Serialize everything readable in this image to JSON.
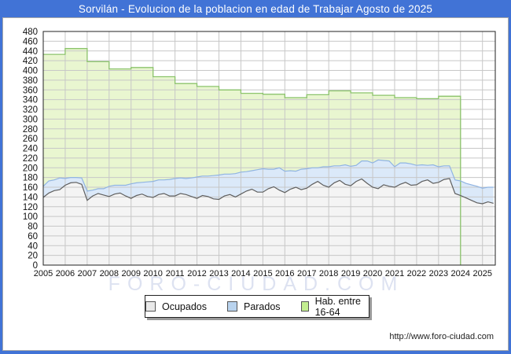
{
  "window": {
    "title": "Sorvilán - Evolucion de la poblacion en edad de Trabajar Agosto de 2025",
    "watermark": "FORO-CIUDAD.COM",
    "footer_url": "http://www.foro-ciudad.com"
  },
  "colors": {
    "frame_blue": "#4173d6",
    "grid": "#c7c7c7",
    "plot_border": "#222222",
    "hab_fill": "#e9f6d0",
    "hab_line": "#8cc46c",
    "parados_fill": "#dbe9f9",
    "parados_line": "#90b4e2",
    "ocupados_fill": "#f4f4f4",
    "ocupados_line": "#5f5f5f"
  },
  "legend": {
    "items": [
      {
        "label": "Ocupados",
        "swatch": "#e9e9e9"
      },
      {
        "label": "Parados",
        "swatch": "#b9d3ee"
      },
      {
        "label": "Hab. entre 16-64",
        "swatch": "#c3ee90"
      }
    ]
  },
  "chart_data": {
    "type": "area",
    "title": "Sorvilán - Evolucion de la poblacion en edad de Trabajar Agosto de 2025",
    "xlabel": "",
    "ylabel": "",
    "ylim": [
      0,
      480
    ],
    "y_ticks": [
      0,
      20,
      40,
      60,
      80,
      100,
      120,
      140,
      160,
      180,
      200,
      220,
      240,
      260,
      280,
      300,
      320,
      340,
      360,
      380,
      400,
      420,
      440,
      460,
      480
    ],
    "categories": [
      "2005",
      "2006",
      "2007",
      "2008",
      "2009",
      "2010",
      "2011",
      "2012",
      "2013",
      "2014",
      "2015",
      "2016",
      "2017",
      "2018",
      "2019",
      "2020",
      "2021",
      "2022",
      "2023",
      "2024",
      "2025"
    ],
    "x_start_year": 2005,
    "x_end": 2025.583,
    "grid": true,
    "legend_position": "bottom",
    "series": [
      {
        "name": "Hab. entre 16-64",
        "cadence": "annual_step",
        "first_year": 2005,
        "last_year": 2023,
        "values": [
          433,
          445,
          418,
          403,
          406,
          387,
          373,
          367,
          360,
          353,
          351,
          344,
          350,
          358,
          354,
          349,
          344,
          342,
          347
        ]
      },
      {
        "name": "Ocupados",
        "cadence": "quarterly",
        "first_year": 2005,
        "values": [
          139,
          148,
          153,
          155,
          164,
          169,
          170,
          166,
          133,
          142,
          147,
          144,
          141,
          146,
          148,
          142,
          137,
          143,
          146,
          141,
          139,
          145,
          147,
          142,
          142,
          147,
          145,
          141,
          137,
          143,
          141,
          136,
          135,
          142,
          145,
          140,
          146,
          152,
          156,
          150,
          150,
          157,
          161,
          154,
          149,
          156,
          160,
          155,
          158,
          166,
          172,
          164,
          160,
          169,
          174,
          166,
          163,
          172,
          177,
          168,
          160,
          157,
          165,
          162,
          160,
          166,
          170,
          164,
          165,
          172,
          175,
          168,
          170,
          176,
          178,
          147,
          143,
          138,
          133,
          128,
          126,
          130,
          127
        ]
      },
      {
        "name": "Parados",
        "cadence": "quarterly",
        "first_year": 2005,
        "note": "stacked on top of Ocupados",
        "values": [
          23,
          25,
          22,
          24,
          14,
          11,
          10,
          13,
          19,
          12,
          10,
          13,
          21,
          18,
          16,
          22,
          30,
          26,
          24,
          30,
          33,
          30,
          28,
          34,
          36,
          32,
          33,
          38,
          44,
          40,
          42,
          48,
          50,
          45,
          42,
          48,
          45,
          40,
          38,
          46,
          48,
          40,
          36,
          46,
          44,
          38,
          33,
          42,
          40,
          34,
          28,
          38,
          42,
          35,
          30,
          40,
          40,
          33,
          37,
          46,
          50,
          59,
          50,
          52,
          42,
          44,
          40,
          44,
          40,
          34,
          30,
          38,
          32,
          28,
          26,
          28,
          30,
          30,
          32,
          34,
          32,
          30,
          33
        ]
      }
    ]
  }
}
